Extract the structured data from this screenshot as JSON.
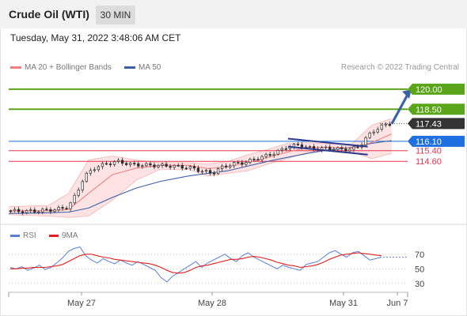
{
  "header": {
    "instrument": "Crude Oil (WTI)",
    "timeframe": "30 MIN"
  },
  "timestamp": "Tuesday, May 31, 2022 3:48:06 AM CET",
  "legend": {
    "ma20": "MA 20 + Bollinger Bands",
    "ma50": "MA 50",
    "credit": "Research © 2022 Trading Central",
    "rsi": "RSI",
    "rsi_ma": "9MA"
  },
  "colors": {
    "ma20": "#f08080",
    "ma50": "#3d5fa8",
    "bollinger_fill": "#fde3e3",
    "candle": "#2e2e2e",
    "resistance": "#5aa51a",
    "support": "#e8344b",
    "pivot": "#1f6fe0",
    "current": "#333333",
    "rsi": "#5b7fd6",
    "rsi_ma": "#e02020",
    "arrow": "#3a64a8"
  },
  "chart_data": [
    {
      "type": "candlestick",
      "xaxis_labels": [
        "May 27",
        "May 28",
        "May 31",
        "Jun 7"
      ],
      "ylim": [
        110.0,
        121.0
      ],
      "levels": [
        {
          "value": 120.0,
          "label": "120.00",
          "kind": "resistance"
        },
        {
          "value": 118.5,
          "label": "118.50",
          "kind": "resistance"
        },
        {
          "value": 117.43,
          "label": "117.43",
          "kind": "current"
        },
        {
          "value": 116.1,
          "label": "116.10",
          "kind": "pivot"
        },
        {
          "value": 115.4,
          "label": "115.40",
          "kind": "support"
        },
        {
          "value": 114.6,
          "label": "114.60",
          "kind": "support"
        }
      ],
      "price_path": [
        [
          0,
          110.9
        ],
        [
          8,
          110.85
        ],
        [
          16,
          110.9
        ],
        [
          24,
          111.0
        ],
        [
          30,
          111.2
        ],
        [
          34,
          112.2
        ],
        [
          38,
          113.5
        ],
        [
          44,
          114.2
        ],
        [
          54,
          114.6
        ],
        [
          62,
          114.35
        ],
        [
          72,
          114.3
        ],
        [
          82,
          114.25
        ],
        [
          92,
          114.1
        ],
        [
          96,
          113.9
        ],
        [
          102,
          113.7
        ],
        [
          106,
          114.1
        ],
        [
          112,
          114.4
        ],
        [
          118,
          114.5
        ],
        [
          124,
          114.8
        ],
        [
          130,
          115.05
        ],
        [
          136,
          115.4
        ],
        [
          140,
          115.7
        ],
        [
          146,
          115.85
        ],
        [
          150,
          115.6
        ],
        [
          156,
          115.55
        ],
        [
          160,
          115.6
        ],
        [
          166,
          115.5
        ],
        [
          172,
          115.5
        ],
        [
          176,
          115.75
        ],
        [
          180,
          116.5
        ],
        [
          184,
          117.0
        ],
        [
          188,
          117.3
        ],
        [
          192,
          117.43
        ]
      ],
      "ma20": [
        [
          0,
          110.9
        ],
        [
          20,
          110.9
        ],
        [
          30,
          111.0
        ],
        [
          40,
          112.2
        ],
        [
          52,
          113.6
        ],
        [
          64,
          114.1
        ],
        [
          76,
          114.3
        ],
        [
          90,
          114.3
        ],
        [
          100,
          114.05
        ],
        [
          110,
          114.2
        ],
        [
          120,
          114.5
        ],
        [
          130,
          114.9
        ],
        [
          140,
          115.3
        ],
        [
          150,
          115.65
        ],
        [
          160,
          115.65
        ],
        [
          172,
          115.6
        ],
        [
          182,
          116.0
        ],
        [
          192,
          116.65
        ]
      ],
      "bollinger_upper": [
        [
          0,
          111.2
        ],
        [
          20,
          111.3
        ],
        [
          30,
          112.2
        ],
        [
          40,
          114.7
        ],
        [
          52,
          115.0
        ],
        [
          64,
          114.7
        ],
        [
          76,
          114.5
        ],
        [
          90,
          114.5
        ],
        [
          100,
          114.4
        ],
        [
          110,
          114.6
        ],
        [
          120,
          115.1
        ],
        [
          130,
          115.5
        ],
        [
          140,
          115.95
        ],
        [
          150,
          116.0
        ],
        [
          160,
          115.9
        ],
        [
          172,
          115.9
        ],
        [
          182,
          117.3
        ],
        [
          192,
          117.8
        ]
      ],
      "bollinger_lower": [
        [
          0,
          110.6
        ],
        [
          20,
          110.5
        ],
        [
          30,
          110.4
        ],
        [
          40,
          110.5
        ],
        [
          52,
          111.7
        ],
        [
          64,
          113.2
        ],
        [
          76,
          114.0
        ],
        [
          90,
          114.0
        ],
        [
          100,
          113.5
        ],
        [
          110,
          113.7
        ],
        [
          120,
          113.9
        ],
        [
          130,
          114.4
        ],
        [
          140,
          114.8
        ],
        [
          150,
          115.3
        ],
        [
          160,
          115.4
        ],
        [
          172,
          115.3
        ],
        [
          182,
          114.8
        ],
        [
          192,
          115.2
        ]
      ],
      "ma50": [
        [
          0,
          110.7
        ],
        [
          20,
          110.75
        ],
        [
          30,
          110.8
        ],
        [
          40,
          111.1
        ],
        [
          52,
          111.9
        ],
        [
          64,
          112.6
        ],
        [
          76,
          113.1
        ],
        [
          90,
          113.5
        ],
        [
          100,
          113.7
        ],
        [
          110,
          113.9
        ],
        [
          120,
          114.25
        ],
        [
          130,
          114.6
        ],
        [
          140,
          114.9
        ],
        [
          150,
          115.2
        ],
        [
          160,
          115.45
        ],
        [
          172,
          115.65
        ],
        [
          182,
          115.95
        ],
        [
          192,
          116.15
        ]
      ],
      "channel_lines": [
        [
          [
            140,
            116.3
          ],
          [
            180,
            115.7
          ]
        ],
        [
          [
            140,
            115.7
          ],
          [
            180,
            115.1
          ]
        ]
      ],
      "arrow": {
        "from": [
          192,
          117.4
        ],
        "to": [
          202,
          120.0
        ]
      }
    },
    {
      "type": "line",
      "name": "RSI",
      "ylim": [
        20,
        85
      ],
      "ticks": [
        30,
        50,
        70
      ],
      "series": [
        {
          "name": "RSI",
          "values": [
            52,
            50,
            53,
            48,
            51,
            55,
            49,
            52,
            58,
            65,
            74,
            78,
            80,
            68,
            62,
            58,
            64,
            60,
            57,
            62,
            58,
            55,
            60,
            56,
            52,
            48,
            38,
            32,
            40,
            45,
            50,
            55,
            60,
            52,
            58,
            62,
            66,
            70,
            64,
            60,
            68,
            72,
            66,
            62,
            58,
            54,
            50,
            55,
            52,
            50,
            48,
            56,
            58,
            60,
            66,
            72,
            75,
            70,
            66,
            72,
            74,
            68,
            62,
            64,
            66
          ]
        },
        {
          "name": "9MA",
          "values": [
            50,
            50,
            51,
            51,
            52,
            52,
            52,
            53,
            54,
            56,
            60,
            64,
            68,
            70,
            70,
            68,
            66,
            65,
            63,
            62,
            61,
            60,
            59,
            58,
            57,
            55,
            52,
            48,
            45,
            44,
            45,
            48,
            52,
            54,
            55,
            57,
            59,
            61,
            63,
            63,
            64,
            66,
            67,
            66,
            64,
            62,
            59,
            57,
            55,
            54,
            52,
            53,
            54,
            56,
            59,
            63,
            66,
            69,
            70,
            71,
            72,
            71,
            70,
            69,
            68
          ]
        }
      ]
    }
  ]
}
